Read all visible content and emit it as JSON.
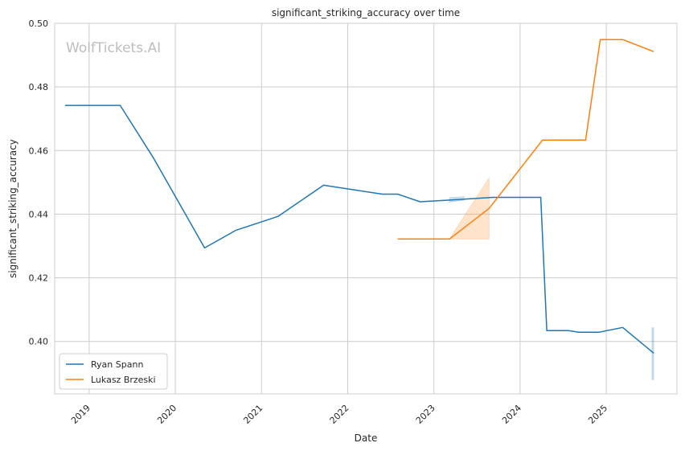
{
  "chart_data": {
    "type": "line",
    "title": "significant_striking_accuracy over time",
    "xlabel": "Date",
    "ylabel": "significant_striking_accuracy",
    "watermark": "WolfTickets.AI",
    "ylim": [
      0.3835,
      0.5
    ],
    "xlim": [
      2018.6,
      2025.82
    ],
    "yticks": [
      0.4,
      0.42,
      0.44,
      0.46,
      0.48,
      0.5
    ],
    "ytick_labels": [
      "0.40",
      "0.42",
      "0.44",
      "0.46",
      "0.48",
      "0.50"
    ],
    "xticks": [
      2019,
      2020,
      2021,
      2022,
      2023,
      2024,
      2025
    ],
    "xtick_labels": [
      "2019",
      "2020",
      "2021",
      "2022",
      "2023",
      "2024",
      "2025"
    ],
    "grid": true,
    "legend_position": "lower-left",
    "series": [
      {
        "name": "Ryan Spann",
        "color": "#1f77b4",
        "x": [
          2018.72,
          2019.36,
          2019.75,
          2020.34,
          2020.7,
          2021.19,
          2021.72,
          2022.4,
          2022.58,
          2022.84,
          2023.22,
          2023.68,
          2024.24,
          2024.31,
          2024.56,
          2024.68,
          2024.92,
          2025.19,
          2025.55
        ],
        "y": [
          0.4742,
          0.4742,
          0.4575,
          0.4294,
          0.4349,
          0.4393,
          0.4491,
          0.4463,
          0.4463,
          0.4439,
          0.4445,
          0.4453,
          0.4453,
          0.4034,
          0.4034,
          0.4029,
          0.4029,
          0.4044,
          0.3963
        ],
        "bands": [
          {
            "x": [
              2023.18,
              2023.35
            ],
            "lower": [
              0.4438,
              0.4444
            ],
            "upper": [
              0.4452,
              0.4455
            ]
          },
          {
            "x": [
              2025.53,
              2025.55
            ],
            "lower": [
              0.388,
              0.388
            ],
            "upper": [
              0.4043,
              0.4043
            ]
          }
        ]
      },
      {
        "name": "Lukasz Brzeski",
        "color": "#ff7f0e",
        "x": [
          2022.58,
          2023.18,
          2023.64,
          2024.26,
          2024.76,
          2024.93,
          2025.19,
          2025.55
        ],
        "y": [
          0.4322,
          0.4322,
          0.4418,
          0.4633,
          0.4633,
          0.4949,
          0.4949,
          0.4911
        ],
        "bands": [
          {
            "x": [
              2023.18,
              2023.64
            ],
            "lower": [
              0.4322,
              0.4322
            ],
            "upper": [
              0.4322,
              0.4514
            ]
          }
        ]
      }
    ]
  }
}
